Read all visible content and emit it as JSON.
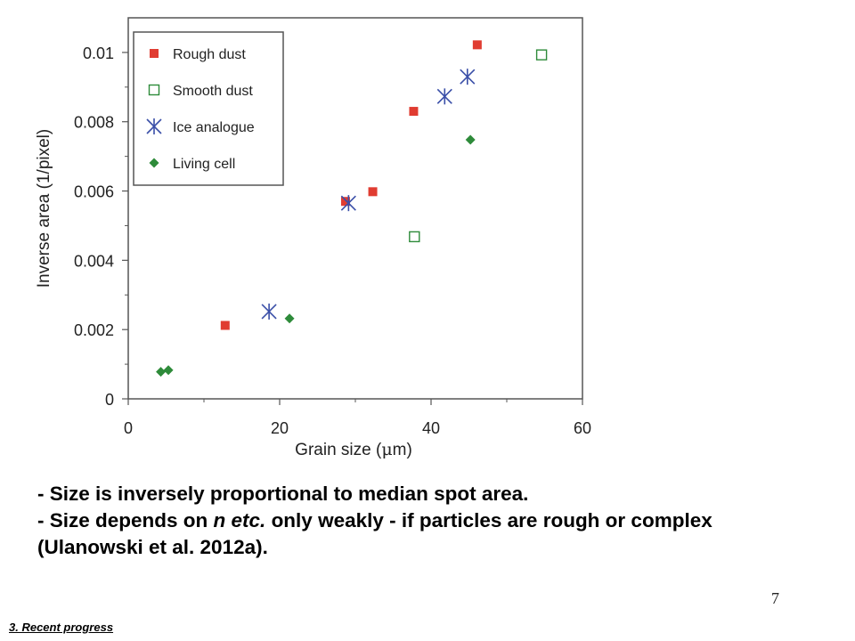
{
  "chart_data": {
    "type": "scatter",
    "xlabel": "Grain size (",
    "xlabel_mu": "μ",
    "xlabel_end": "m)",
    "ylabel": "Inverse area (1/pixel)",
    "xlim": [
      0,
      60
    ],
    "ylim": [
      0,
      0.011
    ],
    "xticks": [
      "0",
      "20",
      "40",
      "60"
    ],
    "yticks": [
      "0",
      "0.002",
      "0.004",
      "0.006",
      "0.008",
      "0.01"
    ],
    "legend_position": "top-left",
    "series": [
      {
        "name": "Rough dust",
        "marker": "filled-square",
        "color": "#e03c31",
        "points": [
          [
            12.8,
            0.00212
          ],
          [
            28.7,
            0.0057
          ],
          [
            32.3,
            0.00598
          ],
          [
            37.7,
            0.0083
          ],
          [
            46.1,
            0.01022
          ]
        ]
      },
      {
        "name": "Smooth dust",
        "marker": "open-square",
        "color": "#2e8b3a",
        "points": [
          [
            37.8,
            0.00468
          ],
          [
            54.6,
            0.00993
          ]
        ]
      },
      {
        "name": "Ice analogue",
        "marker": "asterisk",
        "color": "#3a4fa8",
        "points": [
          [
            18.6,
            0.00252
          ],
          [
            29.1,
            0.00565
          ],
          [
            41.8,
            0.00873
          ],
          [
            44.8,
            0.0093
          ]
        ]
      },
      {
        "name": "Living cell",
        "marker": "diamond",
        "color": "#2e8b3a",
        "points": [
          [
            4.3,
            0.00078
          ],
          [
            5.3,
            0.00083
          ],
          [
            21.3,
            0.00232
          ],
          [
            45.2,
            0.00748
          ]
        ]
      }
    ]
  },
  "bullets": [
    "- Size is inversely proportional to median spot area.",
    "- Size depends on ",
    "n etc.",
    " only weakly - if particles are rough or complex (Ulanowski et al. 2012a)."
  ],
  "slide_number": "7",
  "footer": "3. Recent progress"
}
